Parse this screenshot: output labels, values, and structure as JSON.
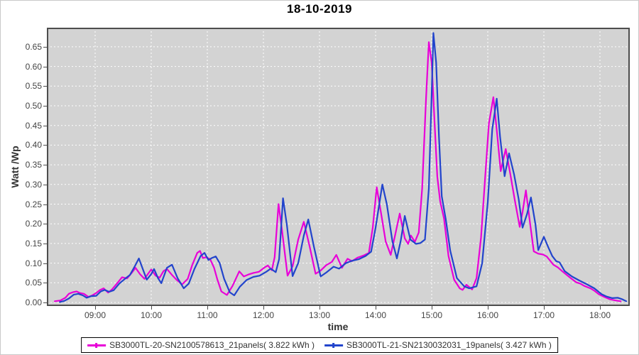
{
  "title": "18-10-2019",
  "axes": {
    "y_label": "Watt /Wp",
    "x_label": "time",
    "y_tick_labels": [
      "0.00",
      "0.05",
      "0.10",
      "0.15",
      "0.20",
      "0.25",
      "0.30",
      "0.35",
      "0.40",
      "0.45",
      "0.50",
      "0.55",
      "0.60",
      "0.65"
    ],
    "x_tick_labels": [
      "09:00",
      "10:00",
      "11:00",
      "12:00",
      "13:00",
      "14:00",
      "15:00",
      "16:00",
      "17:00",
      "18:00"
    ]
  },
  "chart_data": {
    "type": "line",
    "title": "18-10-2019",
    "xlabel": "time",
    "ylabel": "Watt /Wp",
    "x_unit": "decimal_hours",
    "xlim": [
      8.14,
      18.53
    ],
    "ylim": [
      -0.009,
      0.699
    ],
    "y_tick_step": 0.05,
    "grid": true,
    "grid_color": "#ffffff",
    "plot_background": "#d3d3d3",
    "frame_color": "#4d4d4d",
    "legend_position": "bottom",
    "series": [
      {
        "name": "SB3000TL-20-SN2100578613_21panels( 3.822 kWh )",
        "color": "#e800d8",
        "points": [
          [
            8.28,
            0.003
          ],
          [
            8.38,
            0.005
          ],
          [
            8.47,
            0.012
          ],
          [
            8.53,
            0.022
          ],
          [
            8.6,
            0.026
          ],
          [
            8.67,
            0.028
          ],
          [
            8.73,
            0.024
          ],
          [
            8.8,
            0.022
          ],
          [
            8.88,
            0.014
          ],
          [
            8.95,
            0.018
          ],
          [
            9.02,
            0.024
          ],
          [
            9.08,
            0.031
          ],
          [
            9.15,
            0.036
          ],
          [
            9.23,
            0.025
          ],
          [
            9.3,
            0.033
          ],
          [
            9.4,
            0.05
          ],
          [
            9.48,
            0.064
          ],
          [
            9.57,
            0.061
          ],
          [
            9.65,
            0.075
          ],
          [
            9.72,
            0.088
          ],
          [
            9.8,
            0.072
          ],
          [
            9.88,
            0.06
          ],
          [
            9.95,
            0.074
          ],
          [
            10.0,
            0.084
          ],
          [
            10.08,
            0.068
          ],
          [
            10.15,
            0.063
          ],
          [
            10.22,
            0.08
          ],
          [
            10.28,
            0.085
          ],
          [
            10.37,
            0.07
          ],
          [
            10.45,
            0.058
          ],
          [
            10.55,
            0.046
          ],
          [
            10.65,
            0.06
          ],
          [
            10.73,
            0.095
          ],
          [
            10.82,
            0.126
          ],
          [
            10.87,
            0.131
          ],
          [
            10.92,
            0.113
          ],
          [
            10.98,
            0.115
          ],
          [
            11.05,
            0.11
          ],
          [
            11.12,
            0.088
          ],
          [
            11.18,
            0.058
          ],
          [
            11.25,
            0.028
          ],
          [
            11.35,
            0.019
          ],
          [
            11.45,
            0.042
          ],
          [
            11.57,
            0.079
          ],
          [
            11.65,
            0.066
          ],
          [
            11.73,
            0.071
          ],
          [
            11.82,
            0.075
          ],
          [
            11.92,
            0.078
          ],
          [
            12.02,
            0.089
          ],
          [
            12.08,
            0.094
          ],
          [
            12.15,
            0.082
          ],
          [
            12.2,
            0.115
          ],
          [
            12.27,
            0.25
          ],
          [
            12.33,
            0.185
          ],
          [
            12.43,
            0.068
          ],
          [
            12.52,
            0.092
          ],
          [
            12.62,
            0.16
          ],
          [
            12.72,
            0.205
          ],
          [
            12.82,
            0.145
          ],
          [
            12.93,
            0.073
          ],
          [
            13.02,
            0.081
          ],
          [
            13.12,
            0.095
          ],
          [
            13.22,
            0.103
          ],
          [
            13.3,
            0.121
          ],
          [
            13.4,
            0.088
          ],
          [
            13.5,
            0.111
          ],
          [
            13.58,
            0.105
          ],
          [
            13.68,
            0.114
          ],
          [
            13.78,
            0.119
          ],
          [
            13.88,
            0.126
          ],
          [
            13.95,
            0.19
          ],
          [
            14.02,
            0.293
          ],
          [
            14.1,
            0.225
          ],
          [
            14.18,
            0.155
          ],
          [
            14.27,
            0.121
          ],
          [
            14.35,
            0.172
          ],
          [
            14.43,
            0.226
          ],
          [
            14.52,
            0.163
          ],
          [
            14.58,
            0.149
          ],
          [
            14.63,
            0.17
          ],
          [
            14.7,
            0.154
          ],
          [
            14.77,
            0.178
          ],
          [
            14.83,
            0.29
          ],
          [
            14.9,
            0.52
          ],
          [
            14.95,
            0.662
          ],
          [
            15.0,
            0.61
          ],
          [
            15.05,
            0.46
          ],
          [
            15.1,
            0.32
          ],
          [
            15.15,
            0.258
          ],
          [
            15.22,
            0.213
          ],
          [
            15.3,
            0.118
          ],
          [
            15.4,
            0.058
          ],
          [
            15.5,
            0.036
          ],
          [
            15.55,
            0.032
          ],
          [
            15.62,
            0.045
          ],
          [
            15.72,
            0.033
          ],
          [
            15.8,
            0.062
          ],
          [
            15.88,
            0.165
          ],
          [
            15.95,
            0.31
          ],
          [
            16.02,
            0.455
          ],
          [
            16.1,
            0.522
          ],
          [
            16.17,
            0.425
          ],
          [
            16.23,
            0.334
          ],
          [
            16.32,
            0.39
          ],
          [
            16.4,
            0.328
          ],
          [
            16.48,
            0.262
          ],
          [
            16.57,
            0.192
          ],
          [
            16.62,
            0.23
          ],
          [
            16.68,
            0.285
          ],
          [
            16.75,
            0.205
          ],
          [
            16.82,
            0.13
          ],
          [
            16.9,
            0.124
          ],
          [
            16.98,
            0.122
          ],
          [
            17.05,
            0.117
          ],
          [
            17.17,
            0.096
          ],
          [
            17.25,
            0.089
          ],
          [
            17.33,
            0.079
          ],
          [
            17.47,
            0.063
          ],
          [
            17.58,
            0.051
          ],
          [
            17.65,
            0.048
          ],
          [
            17.72,
            0.042
          ],
          [
            17.83,
            0.036
          ],
          [
            17.9,
            0.03
          ],
          [
            17.98,
            0.021
          ],
          [
            18.08,
            0.014
          ],
          [
            18.18,
            0.008
          ],
          [
            18.28,
            0.005
          ],
          [
            18.37,
            0.003
          ]
        ]
      },
      {
        "name": "SB3000TL-21-SN2130032031_19panels( 3.427 kWh )",
        "color": "#2244cc",
        "points": [
          [
            8.37,
            0.001
          ],
          [
            8.45,
            0.004
          ],
          [
            8.53,
            0.01
          ],
          [
            8.62,
            0.02
          ],
          [
            8.7,
            0.022
          ],
          [
            8.78,
            0.018
          ],
          [
            8.85,
            0.012
          ],
          [
            8.93,
            0.016
          ],
          [
            9.02,
            0.017
          ],
          [
            9.1,
            0.028
          ],
          [
            9.17,
            0.032
          ],
          [
            9.25,
            0.027
          ],
          [
            9.33,
            0.031
          ],
          [
            9.43,
            0.048
          ],
          [
            9.53,
            0.06
          ],
          [
            9.62,
            0.07
          ],
          [
            9.7,
            0.09
          ],
          [
            9.78,
            0.112
          ],
          [
            9.85,
            0.085
          ],
          [
            9.92,
            0.058
          ],
          [
            10.0,
            0.072
          ],
          [
            10.05,
            0.085
          ],
          [
            10.12,
            0.062
          ],
          [
            10.18,
            0.049
          ],
          [
            10.28,
            0.088
          ],
          [
            10.37,
            0.096
          ],
          [
            10.47,
            0.062
          ],
          [
            10.58,
            0.036
          ],
          [
            10.67,
            0.048
          ],
          [
            10.77,
            0.085
          ],
          [
            10.88,
            0.118
          ],
          [
            10.95,
            0.126
          ],
          [
            11.02,
            0.108
          ],
          [
            11.08,
            0.113
          ],
          [
            11.15,
            0.117
          ],
          [
            11.22,
            0.1
          ],
          [
            11.3,
            0.06
          ],
          [
            11.4,
            0.026
          ],
          [
            11.48,
            0.018
          ],
          [
            11.58,
            0.04
          ],
          [
            11.7,
            0.057
          ],
          [
            11.82,
            0.065
          ],
          [
            11.93,
            0.068
          ],
          [
            12.05,
            0.078
          ],
          [
            12.13,
            0.086
          ],
          [
            12.22,
            0.077
          ],
          [
            12.28,
            0.11
          ],
          [
            12.35,
            0.265
          ],
          [
            12.42,
            0.195
          ],
          [
            12.52,
            0.067
          ],
          [
            12.62,
            0.1
          ],
          [
            12.72,
            0.17
          ],
          [
            12.8,
            0.211
          ],
          [
            12.9,
            0.142
          ],
          [
            13.02,
            0.066
          ],
          [
            13.12,
            0.076
          ],
          [
            13.25,
            0.091
          ],
          [
            13.35,
            0.086
          ],
          [
            13.47,
            0.1
          ],
          [
            13.58,
            0.106
          ],
          [
            13.7,
            0.11
          ],
          [
            13.82,
            0.118
          ],
          [
            13.92,
            0.129
          ],
          [
            14.0,
            0.19
          ],
          [
            14.12,
            0.3
          ],
          [
            14.2,
            0.25
          ],
          [
            14.3,
            0.155
          ],
          [
            14.38,
            0.112
          ],
          [
            14.45,
            0.158
          ],
          [
            14.52,
            0.22
          ],
          [
            14.62,
            0.16
          ],
          [
            14.72,
            0.149
          ],
          [
            14.8,
            0.151
          ],
          [
            14.88,
            0.16
          ],
          [
            14.95,
            0.29
          ],
          [
            15.0,
            0.53
          ],
          [
            15.03,
            0.685
          ],
          [
            15.08,
            0.61
          ],
          [
            15.13,
            0.42
          ],
          [
            15.18,
            0.27
          ],
          [
            15.25,
            0.212
          ],
          [
            15.33,
            0.132
          ],
          [
            15.45,
            0.062
          ],
          [
            15.58,
            0.041
          ],
          [
            15.67,
            0.036
          ],
          [
            15.8,
            0.041
          ],
          [
            15.9,
            0.1
          ],
          [
            16.0,
            0.255
          ],
          [
            16.08,
            0.44
          ],
          [
            16.16,
            0.518
          ],
          [
            16.22,
            0.42
          ],
          [
            16.3,
            0.321
          ],
          [
            16.38,
            0.379
          ],
          [
            16.47,
            0.325
          ],
          [
            16.55,
            0.263
          ],
          [
            16.62,
            0.19
          ],
          [
            16.7,
            0.225
          ],
          [
            16.77,
            0.267
          ],
          [
            16.85,
            0.198
          ],
          [
            16.9,
            0.133
          ],
          [
            17.0,
            0.167
          ],
          [
            17.08,
            0.14
          ],
          [
            17.15,
            0.118
          ],
          [
            17.22,
            0.105
          ],
          [
            17.28,
            0.102
          ],
          [
            17.37,
            0.08
          ],
          [
            17.5,
            0.066
          ],
          [
            17.63,
            0.056
          ],
          [
            17.77,
            0.046
          ],
          [
            17.9,
            0.036
          ],
          [
            18.03,
            0.021
          ],
          [
            18.12,
            0.015
          ],
          [
            18.22,
            0.011
          ],
          [
            18.32,
            0.012
          ],
          [
            18.4,
            0.008
          ],
          [
            18.47,
            0.003
          ]
        ]
      }
    ]
  }
}
